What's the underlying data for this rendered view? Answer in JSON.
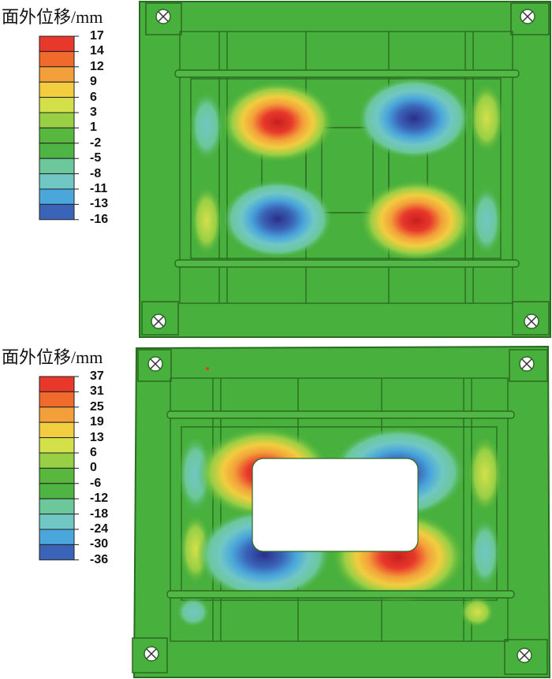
{
  "figures": [
    {
      "legend_title": "面外位移/mm",
      "legend_levels": [
        "17",
        "14",
        "12",
        "9",
        "6",
        "3",
        "1",
        "-2",
        "-5",
        "-8",
        "-11",
        "-13",
        "-16"
      ],
      "legend_colors": [
        "#e8382b",
        "#f06a2c",
        "#f3a03a",
        "#f2cd3f",
        "#d4e04a",
        "#98cf45",
        "#58b83e",
        "#4eb544",
        "#6cc79a",
        "#70c7c4",
        "#4aa6db",
        "#3a64b8",
        "#2e3d96"
      ]
    },
    {
      "legend_title": "面外位移/mm",
      "legend_levels": [
        "37",
        "31",
        "25",
        "19",
        "13",
        "6",
        "0",
        "-6",
        "-12",
        "-18",
        "-24",
        "-30",
        "-36"
      ],
      "legend_colors": [
        "#e8382b",
        "#f06a2c",
        "#f3a03a",
        "#f2cd3f",
        "#d4e04a",
        "#98cf45",
        "#58b83e",
        "#4eb544",
        "#6cc79a",
        "#70c7c4",
        "#4aa6db",
        "#3a64b8",
        "#2e3d96"
      ]
    }
  ],
  "colors": {
    "plate_green": "#48b03c",
    "plate_edge": "#2a6b22",
    "rib_green": "#52b845"
  }
}
